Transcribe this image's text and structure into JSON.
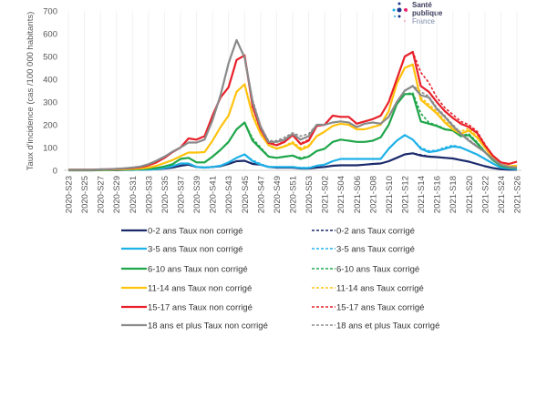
{
  "logo": {
    "line1": "Santé",
    "line2": "publique",
    "line3": "France"
  },
  "chart_data": {
    "type": "line",
    "title": "",
    "xlabel": "",
    "ylabel": "Taux d'incidence (cas /100 000 habitants)",
    "ylim": [
      0,
      700
    ],
    "yticks": [
      0,
      100,
      200,
      300,
      400,
      500,
      600,
      700
    ],
    "grid": "vertical light",
    "legend_position": "bottom",
    "categories": [
      "2020-S23",
      "2020-S24",
      "2020-S25",
      "2020-S26",
      "2020-S27",
      "2020-S28",
      "2020-S29",
      "2020-S30",
      "2020-S31",
      "2020-S32",
      "2020-S33",
      "2020-S34",
      "2020-S35",
      "2020-S36",
      "2020-S37",
      "2020-S38",
      "2020-S39",
      "2020-S40",
      "2020-S41",
      "2020-S42",
      "2020-S43",
      "2020-S44",
      "2020-S45",
      "2020-S46",
      "2020-S47",
      "2020-S48",
      "2020-S49",
      "2020-S50",
      "2020-S51",
      "2020-S52",
      "2020-S53",
      "2021-S01",
      "2021-S02",
      "2021-S03",
      "2021-S04",
      "2021-S05",
      "2021-S06",
      "2021-S07",
      "2021-S08",
      "2021-S09",
      "2021-S10",
      "2021-S11",
      "2021-S12",
      "2021-S13",
      "2021-S14",
      "2021-S15",
      "2021-S16",
      "2021-S17",
      "2021-S18",
      "2021-S19",
      "2021-S20",
      "2021-S21",
      "2021-S22",
      "2021-S23",
      "2021-S24",
      "2021-S25",
      "2021-S26"
    ],
    "tick_labels": [
      "2020-S23",
      "2020-S25",
      "2020-S27",
      "2020-S29",
      "2020-S31",
      "2020-S33",
      "2020-S35",
      "2020-S37",
      "2020-S39",
      "2020-S41",
      "2020-S43",
      "2020-S45",
      "2020-S47",
      "2020-S49",
      "2020-S51",
      "2020-S53",
      "2021-S02",
      "2021-S04",
      "2021-S06",
      "2021-S08",
      "2021-S10",
      "2021-S12",
      "2021-S14",
      "2021-S16",
      "2021-S18",
      "2021-S20",
      "2021-S22",
      "2021-S24",
      "2021-S26"
    ],
    "series": [
      {
        "name": "0-2 ans  Taux corrigé",
        "color": "#1b2a6b",
        "dashed": true,
        "values": [
          0,
          0,
          0,
          0,
          1,
          1,
          1,
          2,
          2,
          3,
          4,
          5,
          8,
          12,
          20,
          25,
          15,
          12,
          15,
          18,
          28,
          40,
          42,
          30,
          26,
          15,
          12,
          12,
          12,
          9,
          9,
          12,
          15,
          20,
          22,
          22,
          22,
          25,
          28,
          30,
          40,
          55,
          70,
          75,
          68,
          62,
          58,
          56,
          53,
          46,
          38,
          28,
          18,
          10,
          5,
          3,
          3
        ]
      },
      {
        "name": "3-5 ans  Taux corrigé",
        "color": "#1eb1e7",
        "dashed": true,
        "values": [
          1,
          1,
          1,
          1,
          1,
          1,
          2,
          2,
          2,
          3,
          3,
          5,
          10,
          18,
          30,
          30,
          15,
          12,
          15,
          20,
          35,
          55,
          70,
          45,
          28,
          16,
          15,
          15,
          15,
          12,
          12,
          20,
          25,
          40,
          50,
          50,
          50,
          50,
          50,
          50,
          95,
          130,
          155,
          135,
          100,
          85,
          88,
          100,
          110,
          102,
          85,
          70,
          50,
          30,
          12,
          8,
          5
        ]
      },
      {
        "name": "6-10 ans Taux corrigé",
        "color": "#1fa64a",
        "dashed": true,
        "values": [
          1,
          1,
          1,
          1,
          1,
          2,
          2,
          3,
          4,
          5,
          7,
          10,
          17,
          27,
          50,
          55,
          35,
          35,
          60,
          90,
          125,
          180,
          210,
          140,
          100,
          62,
          55,
          60,
          65,
          55,
          62,
          85,
          95,
          125,
          135,
          130,
          125,
          125,
          130,
          145,
          200,
          290,
          335,
          340,
          250,
          210,
          198,
          182,
          175,
          152,
          160,
          125,
          82,
          45,
          20,
          12,
          10
        ]
      },
      {
        "name": "11-14 ans Taux corrigé",
        "color": "#ffc20e",
        "dashed": true,
        "values": [
          2,
          2,
          2,
          2,
          3,
          3,
          4,
          5,
          6,
          8,
          12,
          20,
          32,
          45,
          62,
          78,
          78,
          80,
          130,
          190,
          240,
          345,
          378,
          250,
          165,
          112,
          97,
          108,
          125,
          98,
          110,
          150,
          170,
          195,
          205,
          200,
          180,
          180,
          190,
          200,
          260,
          380,
          450,
          465,
          320,
          290,
          258,
          218,
          188,
          170,
          185,
          150,
          102,
          55,
          25,
          18,
          20
        ]
      },
      {
        "name": "15-17 ans Taux corrigé",
        "color": "#e8202a",
        "dashed": true,
        "values": [
          3,
          3,
          3,
          3,
          4,
          5,
          6,
          8,
          10,
          14,
          22,
          35,
          55,
          80,
          100,
          140,
          135,
          150,
          240,
          320,
          365,
          485,
          505,
          300,
          195,
          125,
          112,
          128,
          155,
          118,
          135,
          195,
          200,
          240,
          235,
          235,
          205,
          215,
          225,
          240,
          300,
          400,
          500,
          520,
          430,
          385,
          320,
          275,
          245,
          215,
          200,
          172,
          115,
          65,
          35,
          28,
          38
        ]
      },
      {
        "name": "18 ans et plus Taux corrigé",
        "color": "#8a8a8a",
        "dashed": true,
        "values": [
          3,
          3,
          3,
          3,
          4,
          5,
          7,
          9,
          12,
          17,
          27,
          42,
          60,
          82,
          100,
          122,
          122,
          135,
          220,
          330,
          470,
          572,
          495,
          310,
          195,
          130,
          130,
          145,
          165,
          150,
          160,
          200,
          200,
          210,
          215,
          210,
          190,
          205,
          210,
          205,
          235,
          300,
          350,
          372,
          345,
          325,
          275,
          240,
          200,
          165,
          135,
          108,
          82,
          50,
          25,
          15,
          12
        ]
      },
      {
        "name": "0-2 ans  Taux non corrigé",
        "color": "#1b2a6b",
        "dashed": false,
        "values": [
          0,
          0,
          0,
          0,
          1,
          1,
          1,
          2,
          2,
          3,
          4,
          5,
          8,
          12,
          20,
          25,
          15,
          12,
          15,
          18,
          28,
          40,
          42,
          28,
          25,
          15,
          12,
          12,
          12,
          8,
          8,
          12,
          15,
          20,
          22,
          22,
          22,
          25,
          28,
          30,
          40,
          55,
          70,
          75,
          65,
          60,
          58,
          55,
          52,
          45,
          38,
          28,
          18,
          10,
          5,
          3,
          3
        ]
      },
      {
        "name": "3-5 ans  Taux non corrigé",
        "color": "#1eb1e7",
        "dashed": false,
        "values": [
          1,
          1,
          1,
          1,
          1,
          1,
          2,
          2,
          2,
          3,
          3,
          5,
          10,
          18,
          30,
          30,
          15,
          12,
          15,
          20,
          35,
          55,
          70,
          40,
          25,
          15,
          15,
          15,
          15,
          10,
          10,
          20,
          25,
          40,
          50,
          50,
          50,
          50,
          50,
          50,
          95,
          130,
          155,
          135,
          95,
          80,
          85,
          95,
          105,
          100,
          85,
          70,
          50,
          30,
          12,
          8,
          5
        ]
      },
      {
        "name": "6-10 ans Taux non corrigé",
        "color": "#1fa64a",
        "dashed": false,
        "values": [
          1,
          1,
          1,
          1,
          1,
          2,
          2,
          3,
          4,
          5,
          7,
          10,
          17,
          27,
          50,
          55,
          35,
          35,
          60,
          90,
          125,
          180,
          210,
          130,
          95,
          60,
          55,
          60,
          65,
          50,
          60,
          85,
          95,
          125,
          135,
          130,
          125,
          125,
          130,
          145,
          200,
          290,
          335,
          335,
          215,
          205,
          195,
          180,
          175,
          150,
          155,
          120,
          80,
          45,
          20,
          12,
          10
        ]
      },
      {
        "name": "11-14 ans Taux non corrigé",
        "color": "#ffc20e",
        "dashed": false,
        "values": [
          2,
          2,
          2,
          2,
          3,
          3,
          4,
          5,
          6,
          8,
          12,
          20,
          32,
          45,
          62,
          78,
          78,
          80,
          130,
          190,
          240,
          345,
          378,
          240,
          160,
          110,
          95,
          105,
          120,
          90,
          105,
          150,
          170,
          195,
          205,
          200,
          180,
          180,
          190,
          200,
          260,
          380,
          450,
          465,
          310,
          280,
          250,
          210,
          180,
          160,
          175,
          145,
          100,
          55,
          25,
          18,
          20
        ]
      },
      {
        "name": "15-17 ans Taux non corrigé",
        "color": "#e8202a",
        "dashed": false,
        "values": [
          3,
          3,
          3,
          3,
          4,
          5,
          6,
          8,
          10,
          14,
          22,
          35,
          55,
          80,
          100,
          140,
          135,
          150,
          240,
          320,
          365,
          485,
          505,
          280,
          180,
          120,
          110,
          125,
          155,
          115,
          130,
          195,
          200,
          240,
          235,
          235,
          205,
          215,
          225,
          240,
          300,
          400,
          500,
          520,
          370,
          345,
          300,
          260,
          230,
          205,
          190,
          165,
          110,
          65,
          35,
          28,
          38
        ]
      },
      {
        "name": "18 ans et plus Taux non corrigé",
        "color": "#8a8a8a",
        "dashed": false,
        "values": [
          3,
          3,
          3,
          3,
          4,
          5,
          7,
          9,
          12,
          17,
          27,
          42,
          60,
          82,
          100,
          122,
          122,
          135,
          220,
          330,
          470,
          572,
          495,
          300,
          190,
          125,
          125,
          135,
          160,
          135,
          150,
          200,
          200,
          210,
          215,
          210,
          190,
          205,
          210,
          205,
          235,
          300,
          350,
          370,
          330,
          320,
          270,
          235,
          195,
          160,
          130,
          105,
          80,
          50,
          25,
          15,
          12
        ]
      }
    ],
    "legend": {
      "left": [
        "0-2 ans  Taux non corrigé",
        "3-5 ans  Taux non corrigé",
        "6-10 ans Taux non corrigé",
        "11-14 ans Taux non corrigé",
        "15-17 ans Taux non corrigé",
        "18 ans et plus Taux non corrigé"
      ],
      "right": [
        "0-2 ans  Taux corrigé",
        "3-5 ans  Taux corrigé",
        "6-10 ans Taux corrigé",
        "11-14 ans Taux corrigé",
        "15-17 ans Taux corrigé",
        "18 ans et plus Taux corrigé"
      ],
      "colors": [
        "#1b2a6b",
        "#1eb1e7",
        "#1fa64a",
        "#ffc20e",
        "#e8202a",
        "#8a8a8a"
      ]
    }
  }
}
